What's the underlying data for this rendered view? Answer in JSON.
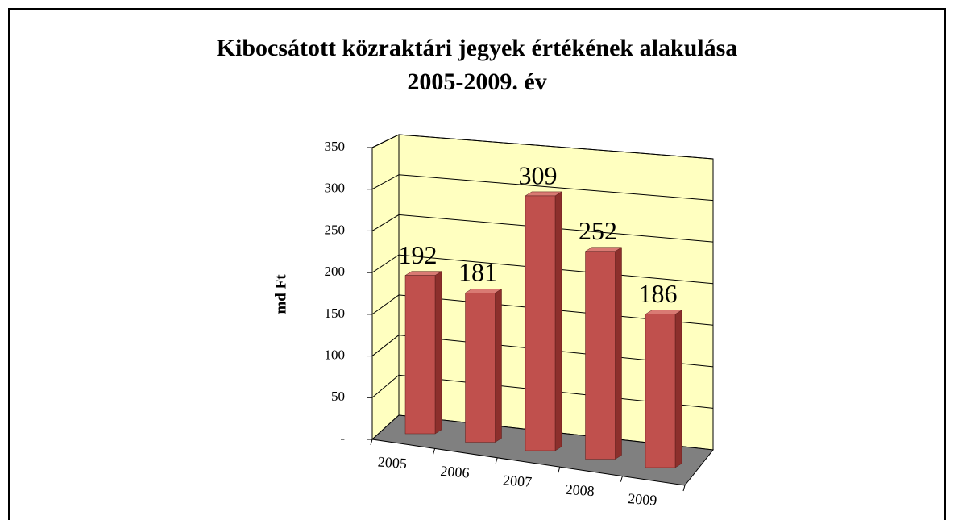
{
  "chart_data": {
    "type": "bar3d",
    "title": "Kibocsátott közraktári jegyek értékének alakulása",
    "subtitle": "2005-2009. év",
    "ylabel": "md Ft",
    "categories": [
      "2005",
      "2006",
      "2007",
      "2008",
      "2009"
    ],
    "values": [
      192,
      181,
      309,
      252,
      186
    ],
    "color": "#c0504d",
    "ylim": [
      0,
      350
    ],
    "yticks": [
      {
        "value": 0,
        "label": "-"
      },
      50,
      100,
      150,
      200,
      250,
      300,
      350
    ],
    "grid": true
  }
}
